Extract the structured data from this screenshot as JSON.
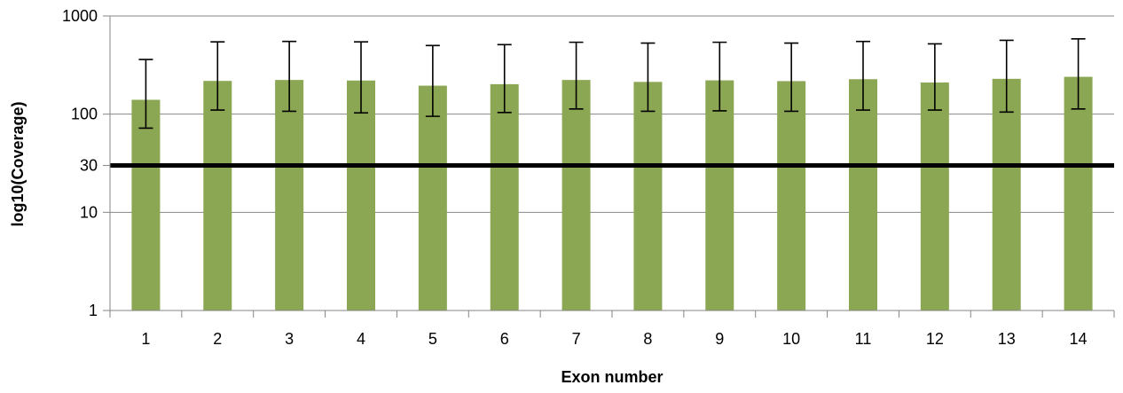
{
  "chart_data": {
    "type": "bar",
    "title": "",
    "xlabel": "Exon number",
    "ylabel": "log10(Coverage)",
    "yscale": "log",
    "ylim": [
      1,
      1000
    ],
    "yticks": [
      1,
      10,
      30,
      100,
      1000
    ],
    "grid": true,
    "legend": "none",
    "categories": [
      "1",
      "2",
      "3",
      "4",
      "5",
      "6",
      "7",
      "8",
      "9",
      "10",
      "11",
      "12",
      "13",
      "14"
    ],
    "values": [
      140,
      218,
      223,
      220,
      195,
      202,
      223,
      213,
      221,
      217,
      227,
      210,
      229,
      240
    ],
    "error_low": [
      72,
      110,
      107,
      103,
      95,
      104,
      113,
      107,
      108,
      107,
      110,
      110,
      105,
      113
    ],
    "error_high": [
      360,
      545,
      550,
      545,
      500,
      510,
      540,
      530,
      540,
      530,
      550,
      520,
      565,
      585
    ],
    "threshold": {
      "value": 30,
      "label": "30"
    },
    "colors": {
      "bar": "#8BA753",
      "grid": "#868686",
      "threshold": "#000000",
      "error": "#000000"
    }
  }
}
